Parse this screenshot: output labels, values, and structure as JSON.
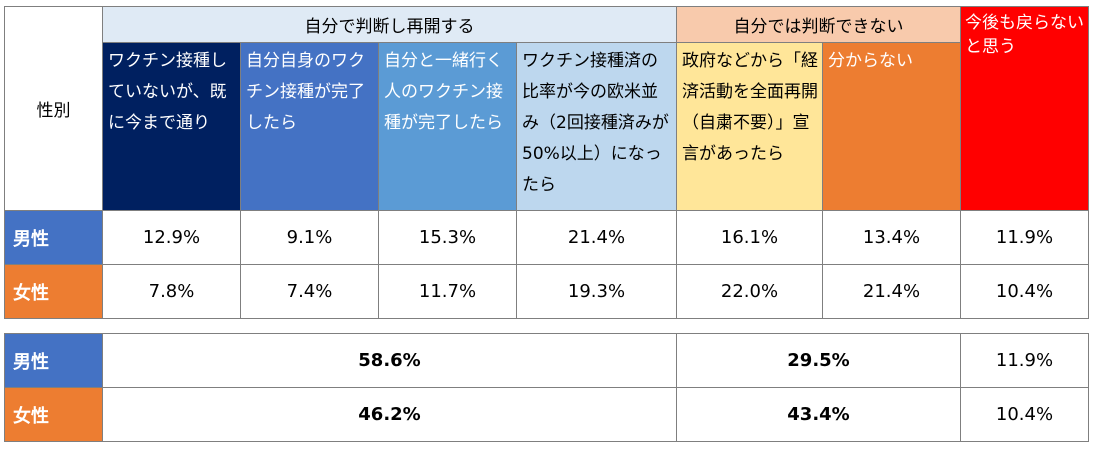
{
  "chart_data": [
    {
      "type": "table",
      "corner_label": "性別",
      "groups": [
        {
          "label": "自分で判断し再開する",
          "color": "#dfeaf5",
          "span": 4
        },
        {
          "label": "自分では判断できない",
          "color": "#f8caac",
          "span": 2
        },
        {
          "label": "今後も戻らないと思う",
          "color": "#ff0000",
          "span": 1
        }
      ],
      "columns": [
        {
          "label": "ワクチン接種していないが、既に今まで通り",
          "color": "#002060"
        },
        {
          "label": "自分自身のワクチン接種が完了したら",
          "color": "#4472c4"
        },
        {
          "label": "自分と一緒行く人のワクチン接種が完了したら",
          "color": "#5b9bd5"
        },
        {
          "label": "ワクチン接種済の比率が今の欧米並み（2回接種済みが50%以上）になったら",
          "color": "#bdd7ee"
        },
        {
          "label": "政府などから「経済活動を全面再開（自粛不要）」宣言があったら",
          "color": "#ffe699"
        },
        {
          "label": "分からない",
          "color": "#ed7d31"
        }
      ],
      "rows": [
        {
          "label": "男性",
          "color": "#4472c4",
          "values": [
            12.9,
            9.1,
            15.3,
            21.4,
            16.1,
            13.4,
            11.9
          ]
        },
        {
          "label": "女性",
          "color": "#ed7d31",
          "values": [
            7.8,
            7.4,
            11.7,
            19.3,
            22.0,
            21.4,
            10.4
          ]
        }
      ],
      "unit": "%"
    },
    {
      "type": "table",
      "rows": [
        {
          "label": "男性",
          "color": "#4472c4",
          "values": [
            58.6,
            29.5,
            11.9
          ]
        },
        {
          "label": "女性",
          "color": "#ed7d31",
          "values": [
            46.2,
            43.4,
            10.4
          ]
        }
      ],
      "unit": "%"
    }
  ]
}
